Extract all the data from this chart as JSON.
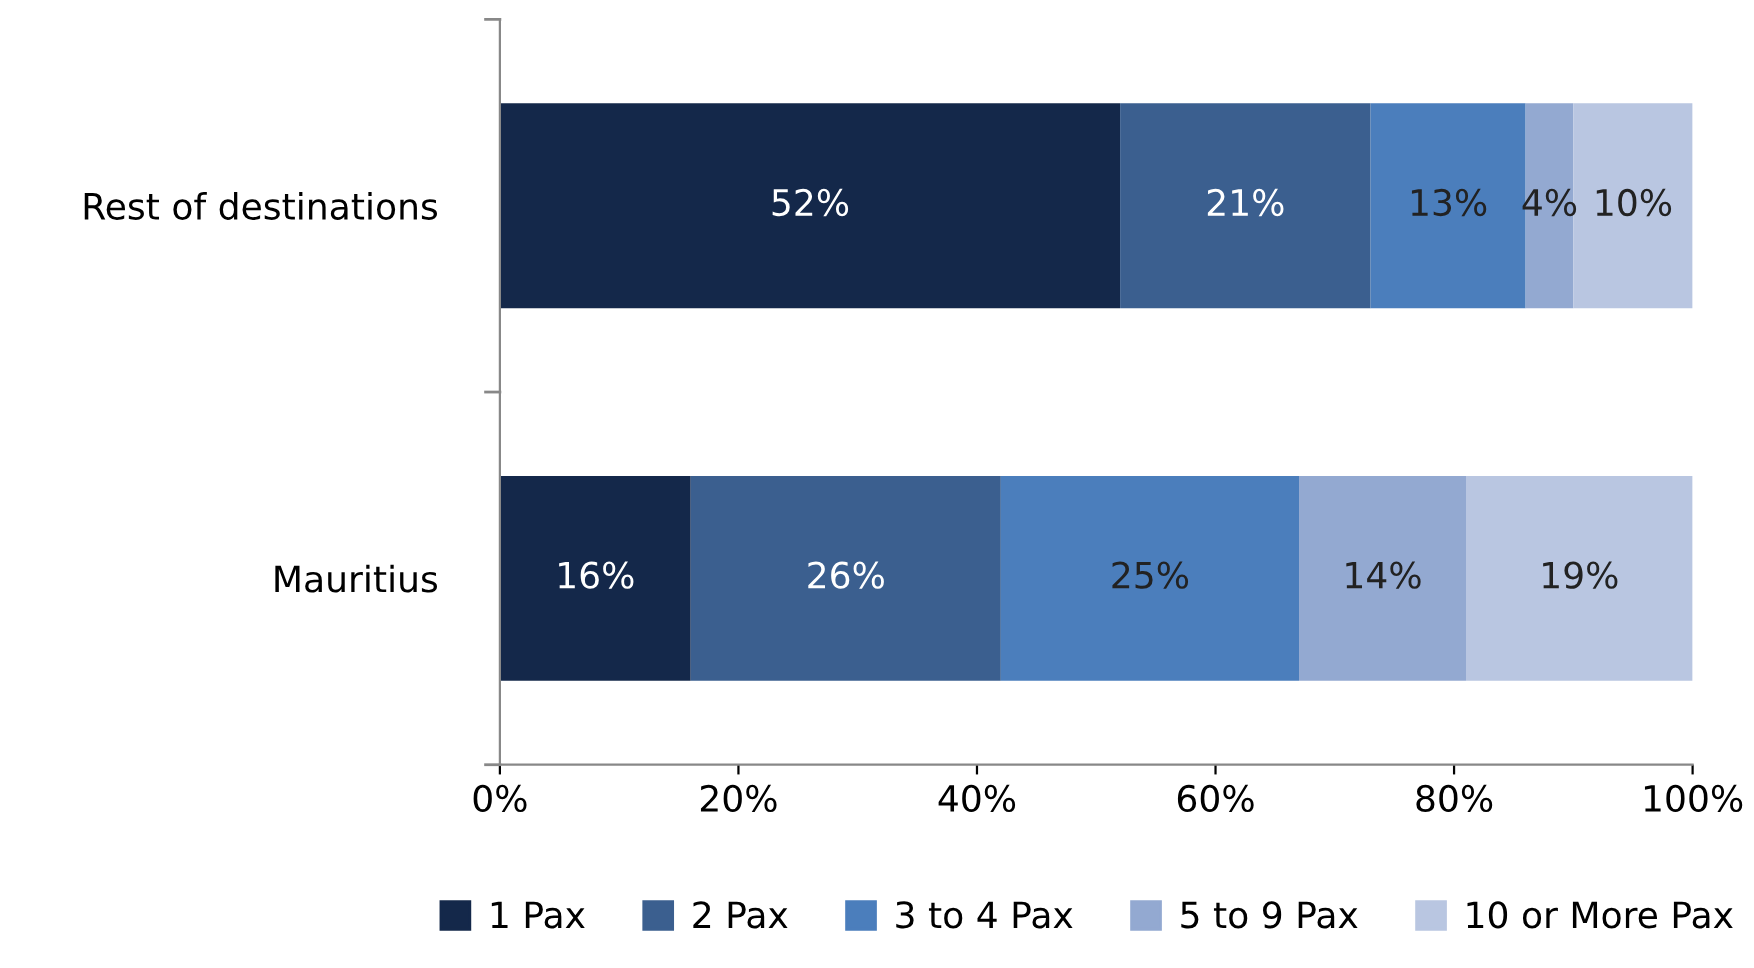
{
  "chart_data": {
    "type": "bar",
    "orientation": "horizontal",
    "stacked": true,
    "categories": [
      "Rest of destinations",
      "Mauritius"
    ],
    "series": [
      {
        "name": "1 Pax",
        "color": "#14284a",
        "values": [
          52,
          16
        ],
        "value_labels": [
          "52%",
          "16%"
        ]
      },
      {
        "name": "2 Pax",
        "color": "#3b5f8f",
        "values": [
          21,
          26
        ],
        "value_labels": [
          "21%",
          "26%"
        ]
      },
      {
        "name": "3 to 4 Pax",
        "color": "#4b7ebc",
        "values": [
          13,
          25
        ],
        "value_labels": [
          "13%",
          "25%"
        ]
      },
      {
        "name": "5 to 9 Pax",
        "color": "#93a9d1",
        "values": [
          4,
          14
        ],
        "value_labels": [
          "4%",
          "14%"
        ]
      },
      {
        "name": "10 or More Pax",
        "color": "#b9c6e1",
        "values": [
          10,
          19
        ],
        "value_labels": [
          "10%",
          "19%"
        ]
      }
    ],
    "xlim": [
      0,
      100
    ],
    "xticks": [
      {
        "value": 0,
        "label": "0%"
      },
      {
        "value": 20,
        "label": "20%"
      },
      {
        "value": 40,
        "label": "40%"
      },
      {
        "value": 60,
        "label": "60%"
      },
      {
        "value": 80,
        "label": "80%"
      },
      {
        "value": 100,
        "label": "100%"
      }
    ],
    "grid": false,
    "legend": "bottom"
  }
}
